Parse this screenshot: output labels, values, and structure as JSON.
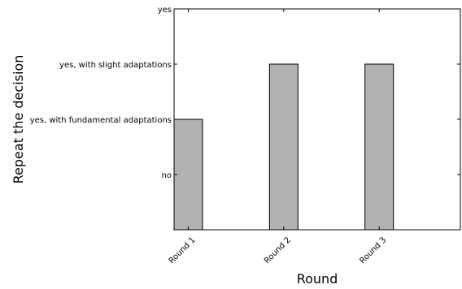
{
  "chart_data": {
    "type": "bar",
    "title": "",
    "xlabel": "Round",
    "ylabel": "Repeat the decision",
    "categories": [
      "Round 1",
      "Round 2",
      "Round 3"
    ],
    "values": [
      2,
      3,
      3
    ],
    "ylim": [
      0,
      4
    ],
    "y_ticks": [
      {
        "value": 1,
        "label": "no"
      },
      {
        "value": 2,
        "label": "yes, with fundamental adaptations"
      },
      {
        "value": 3,
        "label": "yes, with slight adaptations"
      },
      {
        "value": 4,
        "label": "yes"
      }
    ],
    "grid": false,
    "bar_color": "#b2b2b2",
    "edge_color": "#000000"
  }
}
